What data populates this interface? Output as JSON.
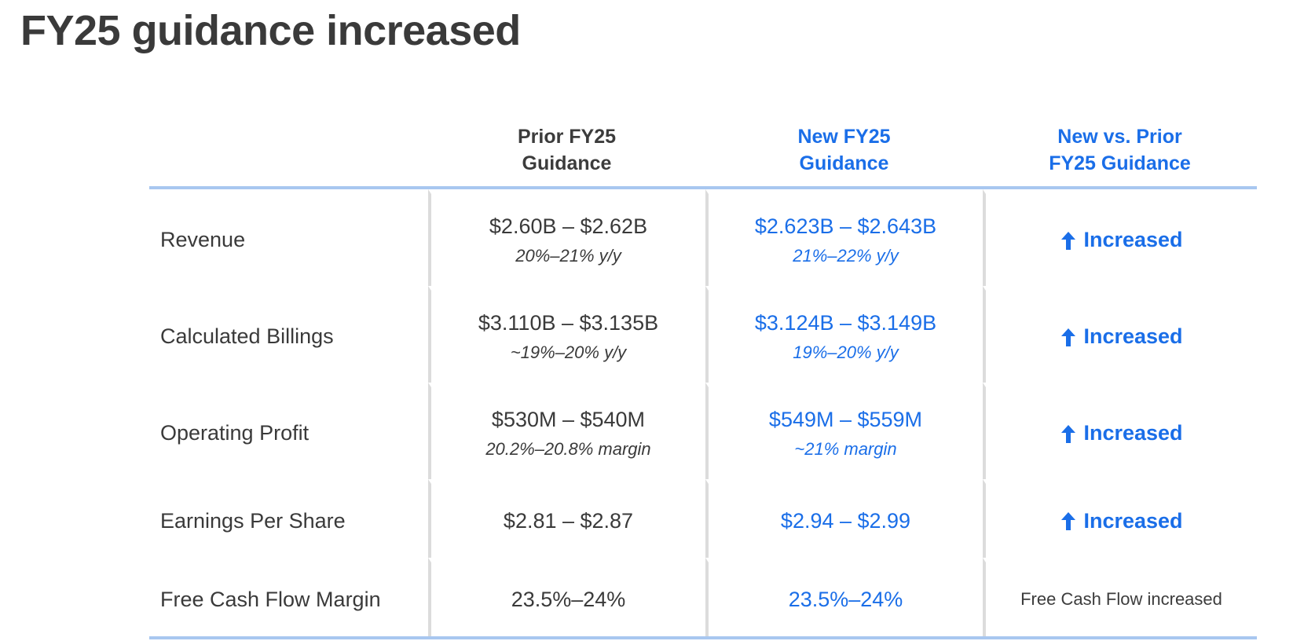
{
  "title": "FY25 guidance increased",
  "columns": {
    "prior": "Prior FY25\nGuidance",
    "new": "New FY25\nGuidance",
    "change": "New vs. Prior\nFY25 Guidance"
  },
  "rows": [
    {
      "metric": "Revenue",
      "prior_range": "$2.60B – $2.62B",
      "prior_sub": "20%–21% y/y",
      "new_range": "$2.623B – $2.643B",
      "new_sub": "21%–22% y/y",
      "status": "Increased",
      "status_icon": "arrow-up-icon"
    },
    {
      "metric": "Calculated Billings",
      "prior_range": "$3.110B – $3.135B",
      "prior_sub": "~19%–20% y/y",
      "new_range": "$3.124B – $3.149B",
      "new_sub": "19%–20% y/y",
      "status": "Increased",
      "status_icon": "arrow-up-icon"
    },
    {
      "metric": "Operating Profit",
      "prior_range": "$530M – $540M",
      "prior_sub": "20.2%–20.8% margin",
      "new_range": "$549M – $559M",
      "new_sub": "~21% margin",
      "status": "Increased",
      "status_icon": "arrow-up-icon"
    },
    {
      "metric": "Earnings Per Share",
      "prior_range": "$2.81 – $2.87",
      "new_range": "$2.94 – $2.99",
      "status": "Increased",
      "status_icon": "arrow-up-icon"
    },
    {
      "metric": "Free Cash Flow Margin",
      "prior_range": "23.5%–24%",
      "new_range": "23.5%–24%",
      "status": "Free Cash Flow increased"
    }
  ],
  "colors": {
    "accent": "#1a6ee8",
    "text": "#3a3a3a",
    "rule": "#a8c7f0",
    "divider": "#dcdcdc"
  }
}
